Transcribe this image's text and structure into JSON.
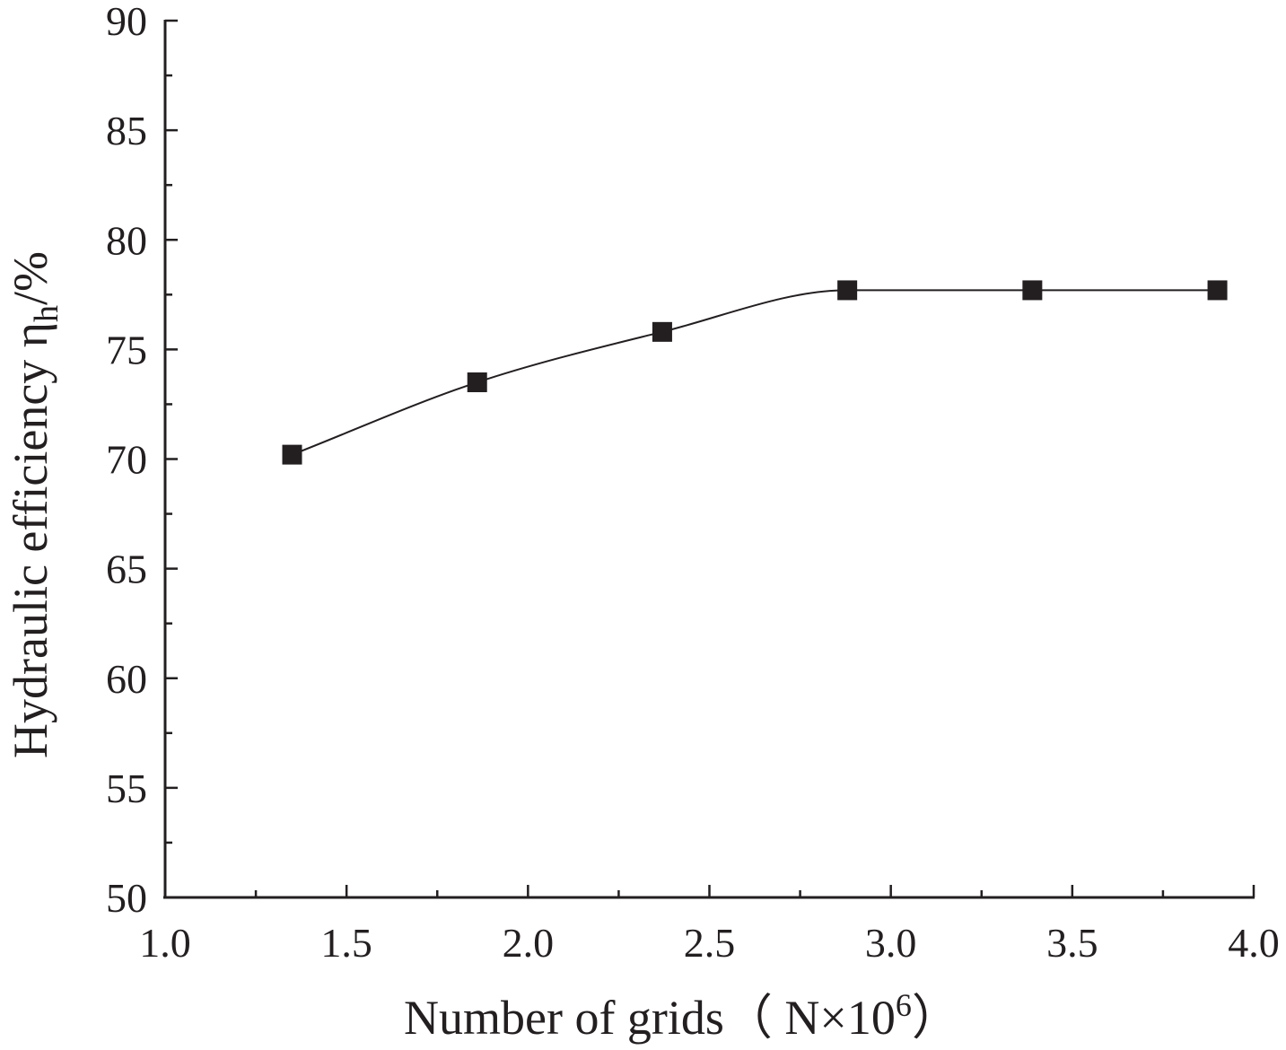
{
  "chart_data": {
    "type": "line",
    "title": "",
    "xlabel": "Number of grids（ N×10⁶）",
    "xlabel_parts": {
      "main": "Number of grids（ N×10",
      "sup": "6",
      "end": "）"
    },
    "ylabel": "Hydraulic efficiency ηh/%",
    "ylabel_parts": {
      "main": "Hydraulic efficiency η",
      "sub": "h",
      "end": "/%"
    },
    "xlim": [
      1.0,
      4.0
    ],
    "ylim": [
      50,
      90
    ],
    "x_major_ticks": [
      1.0,
      1.5,
      2.0,
      2.5,
      3.0,
      3.5,
      4.0
    ],
    "x_tick_labels": [
      "1.0",
      "1.5",
      "2.0",
      "2.5",
      "3.0",
      "3.5",
      "4.0"
    ],
    "x_minor_ticks": [
      1.25,
      1.75,
      2.25,
      2.75,
      3.25,
      3.75
    ],
    "y_major_ticks": [
      50,
      55,
      60,
      65,
      70,
      75,
      80,
      85,
      90
    ],
    "y_tick_labels": [
      "50",
      "55",
      "60",
      "65",
      "70",
      "75",
      "80",
      "85",
      "90"
    ],
    "y_minor_ticks": [
      52.5,
      57.5,
      62.5,
      67.5,
      72.5,
      77.5,
      82.5,
      87.5
    ],
    "grid": false,
    "legend": "none",
    "marker": "square",
    "smooth": true,
    "color": "#231f20",
    "series": [
      {
        "x": [
          1.35,
          1.86,
          2.37,
          2.88,
          3.39,
          3.9
        ],
        "y": [
          70.2,
          73.5,
          75.8,
          77.7,
          77.7,
          77.7
        ]
      }
    ]
  }
}
